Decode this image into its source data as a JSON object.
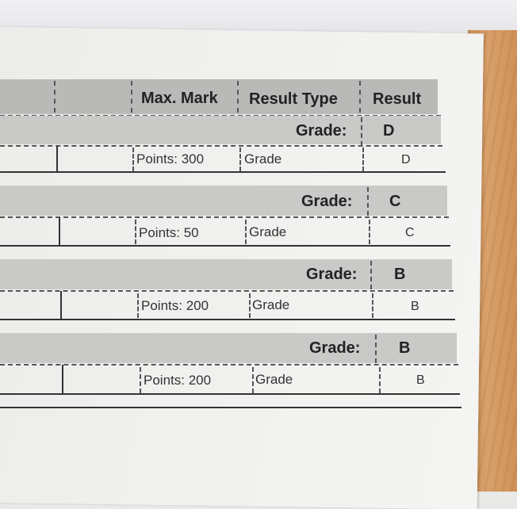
{
  "table": {
    "headers": {
      "max_mark": "Max. Mark",
      "result_type": "Result Type",
      "result": "Result"
    },
    "groups": [
      {
        "grade_label": "Grade:",
        "grade_value": "D",
        "points": "Points: 300",
        "result_type": "Grade",
        "result": "D"
      },
      {
        "grade_label": "Grade:",
        "grade_value": "C",
        "points": "Points: 50",
        "result_type": "Grade",
        "result": "C"
      },
      {
        "grade_label": "Grade:",
        "grade_value": "B",
        "points": "Points: 200",
        "result_type": "Grade",
        "result": "B"
      },
      {
        "grade_label": "Grade:",
        "grade_value": "B",
        "points": "Points: 200",
        "result_type": "Grade",
        "result": "B"
      }
    ]
  }
}
